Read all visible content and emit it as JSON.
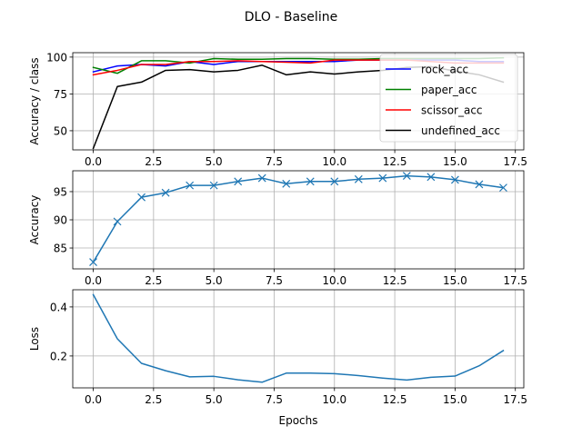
{
  "figure_title": "DLO - Baseline",
  "chart_data": [
    {
      "type": "line",
      "ylabel": "Accuracy / class",
      "xlabel": "",
      "xlim": [
        -0.85,
        17.85
      ],
      "ylim": [
        37,
        103
      ],
      "xticks": [
        0.0,
        2.5,
        5.0,
        7.5,
        10.0,
        12.5,
        15.0,
        17.5
      ],
      "xtick_labels": [
        "0.0",
        "2.5",
        "5.0",
        "7.5",
        "10.0",
        "12.5",
        "15.0",
        "17.5"
      ],
      "yticks": [
        50,
        75,
        100
      ],
      "ytick_labels": [
        "50",
        "75",
        "100"
      ],
      "grid": true,
      "legend": {
        "position": "right",
        "entries": [
          "rock_acc",
          "paper_acc",
          "scissor_acc",
          "undefined_acc"
        ]
      },
      "x": [
        0,
        1,
        2,
        3,
        4,
        5,
        6,
        7,
        8,
        9,
        10,
        11,
        12,
        13,
        14,
        15,
        16,
        17
      ],
      "series": [
        {
          "name": "rock_acc",
          "color": "#0000ff",
          "marker": "none",
          "values": [
            90,
            94,
            95,
            94,
            97,
            95,
            97,
            97,
            97,
            97,
            97,
            98,
            98,
            98,
            98,
            98,
            97,
            97
          ]
        },
        {
          "name": "paper_acc",
          "color": "#008000",
          "marker": "none",
          "values": [
            93,
            89,
            97.5,
            97.5,
            96,
            99,
            98.5,
            98.5,
            99,
            99,
            98.5,
            98.5,
            99,
            99,
            99,
            99,
            99,
            99.5
          ]
        },
        {
          "name": "scissor_acc",
          "color": "#ff0000",
          "marker": "none",
          "values": [
            88,
            91,
            95,
            95,
            97,
            97,
            97.5,
            97,
            96.5,
            96,
            98,
            98,
            98,
            98,
            97,
            96,
            96,
            96
          ]
        },
        {
          "name": "undefined_acc",
          "color": "#000000",
          "marker": "none",
          "values": [
            38,
            80,
            83,
            91,
            91.5,
            90,
            91,
            94.5,
            88,
            90,
            88.5,
            90,
            91,
            93,
            93.5,
            90.5,
            88,
            83
          ]
        }
      ]
    },
    {
      "type": "line",
      "ylabel": "Accuracy",
      "xlabel": "",
      "xlim": [
        -0.85,
        17.85
      ],
      "ylim": [
        81.3,
        98.7
      ],
      "xticks": [
        0.0,
        2.5,
        5.0,
        7.5,
        10.0,
        12.5,
        15.0,
        17.5
      ],
      "xtick_labels": [
        "0.0",
        "2.5",
        "5.0",
        "7.5",
        "10.0",
        "12.5",
        "15.0",
        "17.5"
      ],
      "yticks": [
        85,
        90,
        95
      ],
      "ytick_labels": [
        "85",
        "90",
        "95"
      ],
      "grid": true,
      "x": [
        0,
        1,
        2,
        3,
        4,
        5,
        6,
        7,
        8,
        9,
        10,
        11,
        12,
        13,
        14,
        15,
        16,
        17
      ],
      "series": [
        {
          "color": "#1f77b4",
          "marker": "x",
          "values": [
            82.5,
            89.7,
            94,
            94.8,
            96.1,
            96.1,
            96.8,
            97.4,
            96.4,
            96.8,
            96.8,
            97.2,
            97.4,
            97.8,
            97.6,
            97.1,
            96.3,
            95.7
          ]
        }
      ]
    },
    {
      "type": "line",
      "ylabel": "Loss",
      "xlabel": "Epochs",
      "xlim": [
        -0.85,
        17.85
      ],
      "ylim": [
        0.07,
        0.47
      ],
      "xticks": [
        0.0,
        2.5,
        5.0,
        7.5,
        10.0,
        12.5,
        15.0,
        17.5
      ],
      "xtick_labels": [
        "0.0",
        "2.5",
        "5.0",
        "7.5",
        "10.0",
        "12.5",
        "15.0",
        "17.5"
      ],
      "yticks": [
        0.2,
        0.4
      ],
      "ytick_labels": [
        "0.2",
        "0.4"
      ],
      "grid": true,
      "x": [
        0,
        1,
        2,
        3,
        4,
        5,
        6,
        7,
        8,
        9,
        10,
        11,
        12,
        13,
        14,
        15,
        16,
        17
      ],
      "series": [
        {
          "color": "#1f77b4",
          "marker": "none",
          "values": [
            0.45,
            0.27,
            0.17,
            0.14,
            0.115,
            0.117,
            0.103,
            0.093,
            0.13,
            0.13,
            0.128,
            0.12,
            0.11,
            0.102,
            0.113,
            0.118,
            0.16,
            0.222
          ]
        }
      ]
    }
  ]
}
